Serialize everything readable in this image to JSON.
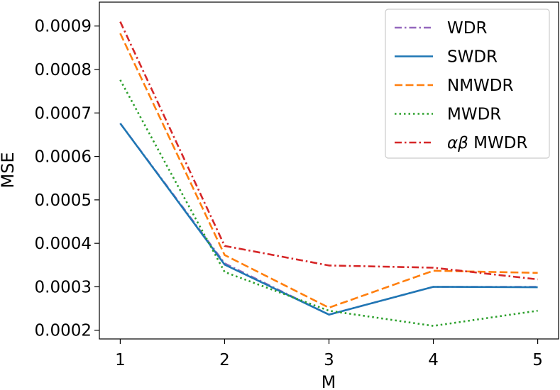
{
  "chart_data": {
    "type": "line",
    "title": "",
    "xlabel": "M",
    "ylabel": "MSE",
    "x": [
      1,
      2,
      3,
      4,
      5
    ],
    "xticks": [
      1,
      2,
      3,
      4,
      5
    ],
    "xtick_labels": [
      "1",
      "2",
      "3",
      "4",
      "5"
    ],
    "yticks": [
      0.0002,
      0.0003,
      0.0004,
      0.0005,
      0.0006,
      0.0007,
      0.0008,
      0.0009
    ],
    "ytick_labels": [
      "0.0002",
      "0.0003",
      "0.0004",
      "0.0005",
      "0.0006",
      "0.0007",
      "0.0008",
      "0.0009"
    ],
    "xlim": [
      0.8,
      5.2
    ],
    "ylim": [
      0.00018,
      0.000955
    ],
    "grid": false,
    "legend_position": "top-right",
    "series": [
      {
        "name": "WDR",
        "label_parts": [
          "WDR"
        ],
        "color": "#9467bd",
        "style": "dashdot",
        "values": [
          0.000676,
          0.000354,
          0.000236,
          0.0003,
          0.0003
        ]
      },
      {
        "name": "SWDR",
        "label_parts": [
          "SWDR"
        ],
        "color": "#1f77b4",
        "style": "solid",
        "values": [
          0.000676,
          0.000351,
          0.000236,
          0.0003,
          0.000299
        ]
      },
      {
        "name": "NMWDR",
        "label_parts": [
          "NMWDR"
        ],
        "color": "#ff7f0e",
        "style": "dashed",
        "values": [
          0.000883,
          0.000373,
          0.000252,
          0.000337,
          0.000332
        ]
      },
      {
        "name": "MWDR",
        "label_parts": [
          "MWDR"
        ],
        "color": "#2ca02c",
        "style": "dotted",
        "values": [
          0.000776,
          0.000334,
          0.000245,
          0.00021,
          0.000245
        ]
      },
      {
        "name": "αβ MWDR",
        "label_parts": [
          "αβ",
          " MWDR"
        ],
        "color": "#d62728",
        "style": "dashdot",
        "values": [
          0.00091,
          0.000394,
          0.000349,
          0.000344,
          0.000317
        ]
      }
    ]
  }
}
